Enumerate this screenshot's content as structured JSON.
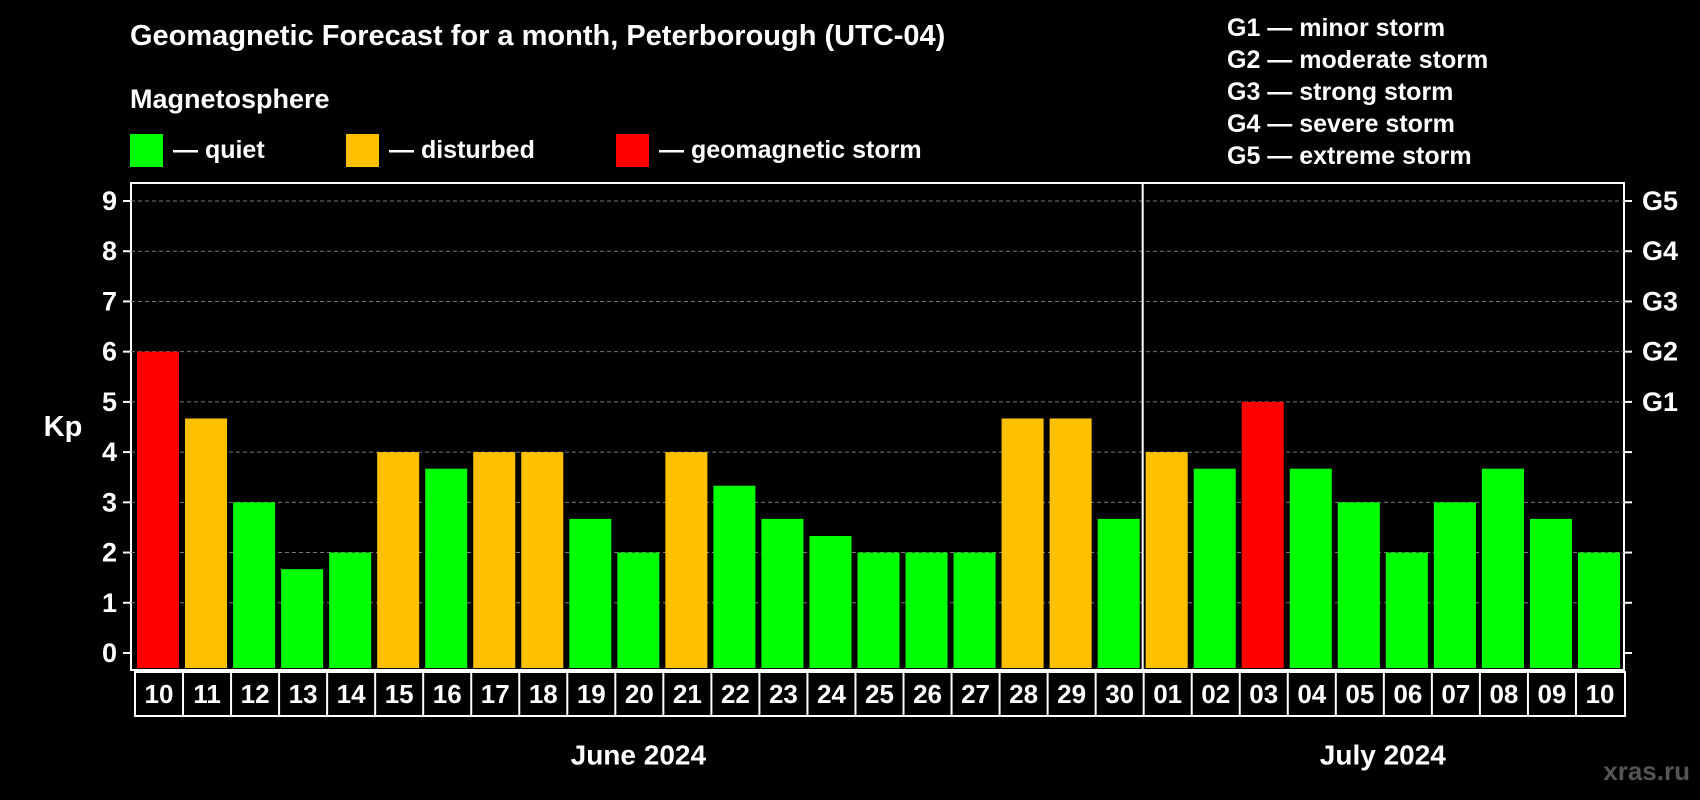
{
  "title": "Geomagnetic Forecast for a month, Peterborough (UTC-04)",
  "subtitle": "Magnetosphere",
  "legend": [
    {
      "label": "— quiet",
      "color": "#00ff00"
    },
    {
      "label": "— disturbed",
      "color": "#ffc000"
    },
    {
      "label": "— geomagnetic storm",
      "color": "#ff0000"
    }
  ],
  "g_legend": [
    "G1 — minor storm",
    "G2 — moderate storm",
    "G3 — strong storm",
    "G4 — severe storm",
    "G5 — extreme storm"
  ],
  "watermark": "xras.ru",
  "colors": {
    "quiet": "#00ff00",
    "disturbed": "#ffc000",
    "storm": "#ff0000"
  },
  "chart_data": {
    "type": "bar",
    "ylabel": "Kp",
    "ylim": [
      0,
      9
    ],
    "yticks": [
      0,
      1,
      2,
      3,
      4,
      5,
      6,
      7,
      8,
      9
    ],
    "right_axis_labels": [
      {
        "kp": 5,
        "label": "G1"
      },
      {
        "kp": 6,
        "label": "G2"
      },
      {
        "kp": 7,
        "label": "G3"
      },
      {
        "kp": 8,
        "label": "G4"
      },
      {
        "kp": 9,
        "label": "G5"
      }
    ],
    "grid": true,
    "categories": [
      "10",
      "11",
      "12",
      "13",
      "14",
      "15",
      "16",
      "17",
      "18",
      "19",
      "20",
      "21",
      "22",
      "23",
      "24",
      "25",
      "26",
      "27",
      "28",
      "29",
      "30",
      "01",
      "02",
      "03",
      "04",
      "05",
      "06",
      "07",
      "08",
      "09",
      "10"
    ],
    "values": [
      6,
      4.67,
      3,
      1.67,
      2,
      4,
      3.67,
      4,
      4,
      2.67,
      2,
      4,
      3.33,
      2.67,
      2.33,
      2,
      2,
      2,
      4.67,
      4.67,
      2.67,
      4,
      3.67,
      5,
      3.67,
      3,
      2,
      3,
      3.67,
      2.67,
      2
    ],
    "status": [
      "storm",
      "disturbed",
      "quiet",
      "quiet",
      "quiet",
      "disturbed",
      "quiet",
      "disturbed",
      "disturbed",
      "quiet",
      "quiet",
      "disturbed",
      "quiet",
      "quiet",
      "quiet",
      "quiet",
      "quiet",
      "quiet",
      "disturbed",
      "disturbed",
      "quiet",
      "disturbed",
      "quiet",
      "storm",
      "quiet",
      "quiet",
      "quiet",
      "quiet",
      "quiet",
      "quiet",
      "quiet"
    ],
    "months": [
      {
        "label": "June 2024",
        "start": 0,
        "end": 20
      },
      {
        "label": "July 2024",
        "start": 21,
        "end": 30
      }
    ]
  }
}
